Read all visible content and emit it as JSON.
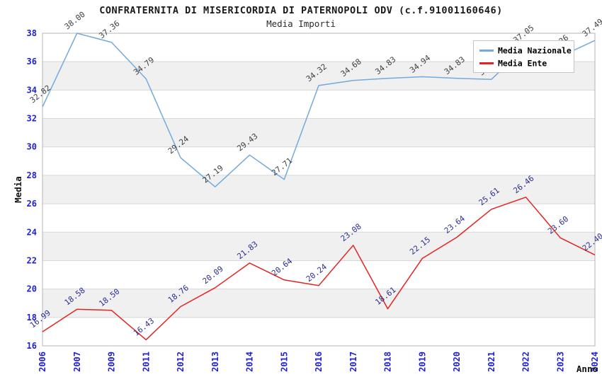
{
  "chart_data": {
    "type": "line",
    "title": "CONFRATERNITA DI MISERICORDIA DI PATERNOPOLI ODV (c.f.91001160646)",
    "subtitle": "Media Importi",
    "xlabel": "Anno",
    "ylabel": "Media",
    "ylim": [
      16,
      38
    ],
    "ytick_step": 2,
    "grid": true,
    "legend_position": "top-right",
    "categories": [
      "2006",
      "2007",
      "2009",
      "2011",
      "2012",
      "2013",
      "2014",
      "2015",
      "2016",
      "2017",
      "2018",
      "2019",
      "2020",
      "2021",
      "2022",
      "2023",
      "2024"
    ],
    "series": [
      {
        "name": "Media Nazionale",
        "color": "#74a9dc",
        "label_color": "#3f3f3f",
        "values": [
          32.82,
          38.0,
          37.36,
          34.79,
          29.24,
          27.19,
          29.43,
          27.71,
          34.32,
          34.68,
          34.83,
          34.94,
          34.83,
          34.75,
          37.05,
          36.36,
          37.49
        ]
      },
      {
        "name": "Media Ente",
        "color": "#e62222",
        "label_color": "#2e2e91",
        "values": [
          16.99,
          18.58,
          18.5,
          16.43,
          18.76,
          20.09,
          21.83,
          20.64,
          20.24,
          23.08,
          18.61,
          22.15,
          23.64,
          25.61,
          26.46,
          23.6,
          22.4
        ]
      }
    ],
    "colors": {
      "band_fill": "#f0f0f0",
      "gridline": "#d8d8d8",
      "frame": "#b4b4b4",
      "tick_label": "#2121d1",
      "legend_border": "#c4c4c4",
      "legend_bg": "#ffffff"
    }
  }
}
